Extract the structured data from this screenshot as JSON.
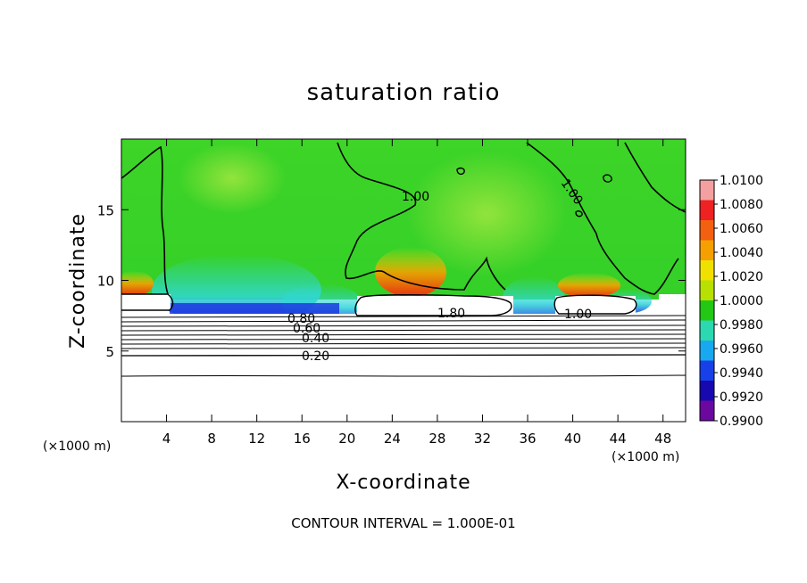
{
  "chart_data": {
    "type": "heatmap",
    "title": "saturation ratio",
    "xlabel": "X-coordinate",
    "ylabel": "Z-coordinate",
    "x_unit": "(×1000 m)",
    "z_unit": "(×1000 m)",
    "xlim": [
      0,
      50
    ],
    "ylim": [
      0,
      20
    ],
    "x_ticks": [
      4,
      8,
      12,
      16,
      20,
      24,
      28,
      32,
      36,
      40,
      44,
      48
    ],
    "y_ticks": [
      5,
      10,
      15
    ],
    "colorbar": {
      "ticks": [
        "1.0100",
        "1.0080",
        "1.0060",
        "1.0040",
        "1.0020",
        "1.0000",
        "0.9980",
        "0.9960",
        "0.9940",
        "0.9920",
        "0.9900"
      ],
      "colors": [
        "#f4a0a0",
        "#ee2222",
        "#f26010",
        "#f5a000",
        "#f0e000",
        "#b8e000",
        "#22c814",
        "#2cd8b0",
        "#18a8f0",
        "#1840e8",
        "#1808b0",
        "#6a08a0"
      ]
    },
    "contour_labels": [
      "1.00",
      "1.00",
      "1.00",
      "1.80",
      "0.80",
      "0.60",
      "0.40",
      "0.20"
    ],
    "footer": "CONTOUR INTERVAL = 1.000E-01",
    "colors": {
      "field_green": "#2ed424",
      "upper_green": "#8ee040",
      "cyan": "#30d8d8",
      "deep_blue": "#1a30e0",
      "warm_orange": "#f08010",
      "warm_red": "#e83010"
    }
  }
}
